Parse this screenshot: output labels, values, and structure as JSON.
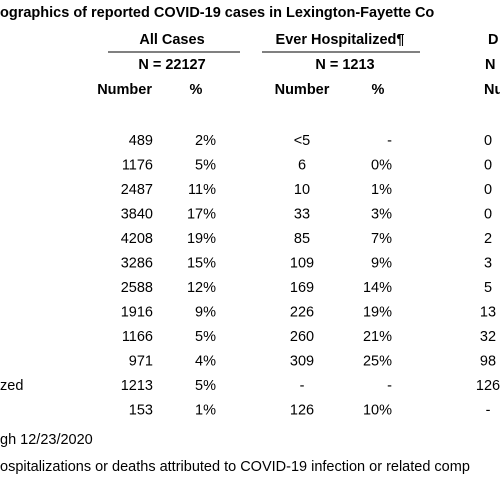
{
  "title": "ographics of reported COVID-19 cases in Lexington-Fayette Co",
  "groups": [
    {
      "label": "All Cases",
      "n": "N = 22127"
    },
    {
      "label": "Ever Hospitalized¶",
      "n": "N = 1213"
    },
    {
      "label": "D",
      "n": "N"
    }
  ],
  "columns": [
    "Number",
    "%",
    "Number",
    "%",
    "Numb"
  ],
  "rows": [
    {
      "cells": [
        "489",
        "2%",
        "<5",
        "-",
        "0"
      ]
    },
    {
      "cells": [
        "1176",
        "5%",
        "6",
        "0%",
        "0"
      ]
    },
    {
      "cells": [
        "2487",
        "11%",
        "10",
        "1%",
        "0"
      ]
    },
    {
      "cells": [
        "3840",
        "17%",
        "33",
        "3%",
        "0"
      ]
    },
    {
      "cells": [
        "4208",
        "19%",
        "85",
        "7%",
        "2"
      ]
    },
    {
      "cells": [
        "3286",
        "15%",
        "109",
        "9%",
        "3"
      ]
    },
    {
      "cells": [
        "2588",
        "12%",
        "169",
        "14%",
        "5"
      ]
    },
    {
      "cells": [
        "1916",
        "9%",
        "226",
        "19%",
        "13"
      ]
    },
    {
      "cells": [
        "1166",
        "5%",
        "260",
        "21%",
        "32"
      ]
    },
    {
      "cells": [
        "971",
        "4%",
        "309",
        "25%",
        "98"
      ]
    },
    {
      "label": "zed",
      "cells": [
        "1213",
        "5%",
        "-",
        "-",
        "126"
      ]
    },
    {
      "cells": [
        "153",
        "1%",
        "126",
        "10%",
        "-"
      ]
    }
  ],
  "footnotes": [
    "gh 12/23/2020",
    "ospitalizations or deaths attributed to COVID-19 infection or related comp"
  ]
}
